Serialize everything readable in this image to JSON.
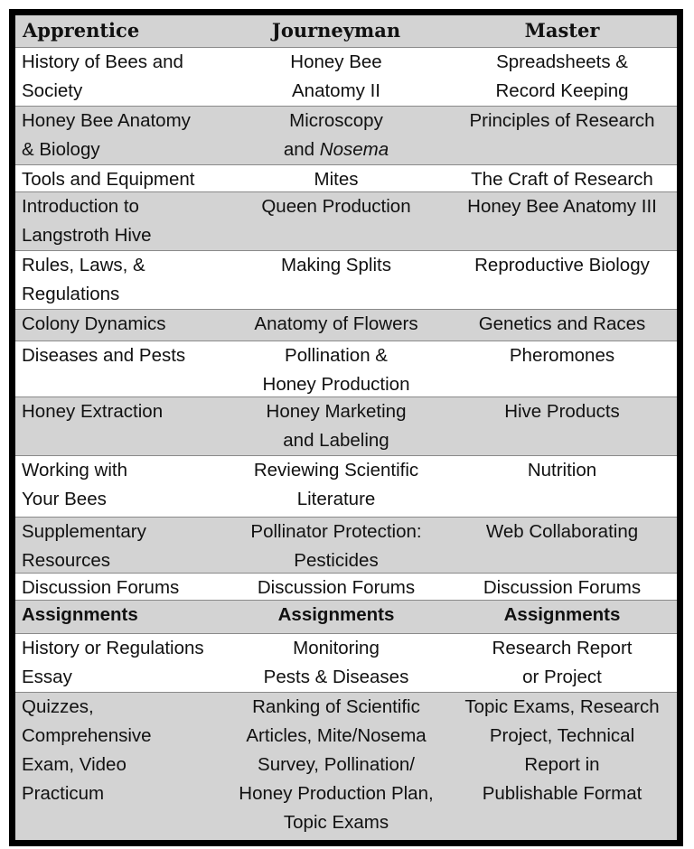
{
  "header": [
    "Apprentice",
    "Journeyman",
    "Master"
  ],
  "rows": [
    {
      "cells": [
        [
          "History of Bees and",
          "Society"
        ],
        [
          "Honey Bee",
          "Anatomy II"
        ],
        [
          "Spreadsheets &",
          "Record Keeping"
        ]
      ]
    },
    {
      "cells": [
        [
          "Honey Bee Anatomy",
          "& Biology"
        ],
        [
          "Microscopy",
          {
            "pre": "and ",
            "italic": "Nosema"
          }
        ],
        [
          "Principles of Research"
        ]
      ]
    },
    {
      "cells": [
        [
          "Tools and Equipment"
        ],
        [
          "Mites"
        ],
        [
          "The Craft of Research"
        ]
      ]
    },
    {
      "cells": [
        [
          "Introduction to",
          "Langstroth Hive"
        ],
        [
          "Queen Production"
        ],
        [
          "Honey Bee Anatomy III"
        ]
      ]
    },
    {
      "cells": [
        [
          "Rules, Laws, &",
          "Regulations"
        ],
        [
          "Making Splits"
        ],
        [
          "Reproductive Biology"
        ]
      ]
    },
    {
      "cells": [
        [
          "Colony Dynamics"
        ],
        [
          "Anatomy of Flowers"
        ],
        [
          "Genetics and Races"
        ]
      ]
    },
    {
      "cells": [
        [
          "Diseases and Pests"
        ],
        [
          "Pollination &",
          "Honey Production"
        ],
        [
          "Pheromones"
        ]
      ]
    },
    {
      "cells": [
        [
          "Honey Extraction"
        ],
        [
          "Honey Marketing",
          "and Labeling"
        ],
        [
          "Hive Products"
        ]
      ]
    },
    {
      "cells": [
        [
          "Working with",
          "Your Bees"
        ],
        [
          "Reviewing Scientific",
          "Literature"
        ],
        [
          "Nutrition"
        ]
      ]
    },
    {
      "cells": [
        [
          "Supplementary",
          "Resources"
        ],
        [
          "Pollinator Protection:",
          "Pesticides"
        ],
        [
          "Web Collaborating"
        ]
      ]
    },
    {
      "cells": [
        [
          "Discussion Forums"
        ],
        [
          "Discussion Forums"
        ],
        [
          "Discussion Forums"
        ]
      ]
    },
    {
      "bold": true,
      "cells": [
        [
          "Assignments"
        ],
        [
          "Assignments"
        ],
        [
          "Assignments"
        ]
      ]
    },
    {
      "cells": [
        [
          "History or Regulations",
          "Essay"
        ],
        [
          "Monitoring",
          "Pests & Diseases"
        ],
        [
          "Research Report",
          "or Project"
        ]
      ]
    },
    {
      "cells": [
        [
          "Quizzes,",
          "Comprehensive",
          "Exam, Video",
          "Practicum"
        ],
        [
          "Ranking of Scientific",
          "Articles, Mite/Nosema",
          "Survey, Pollination/",
          "Honey Production Plan,",
          "Topic Exams"
        ],
        [
          "Topic Exams, Research",
          "Project, Technical",
          "Report in",
          "Publishable Format"
        ]
      ]
    }
  ],
  "colors": {
    "shaded_row": "#d3d3d3",
    "border": "#000000"
  }
}
